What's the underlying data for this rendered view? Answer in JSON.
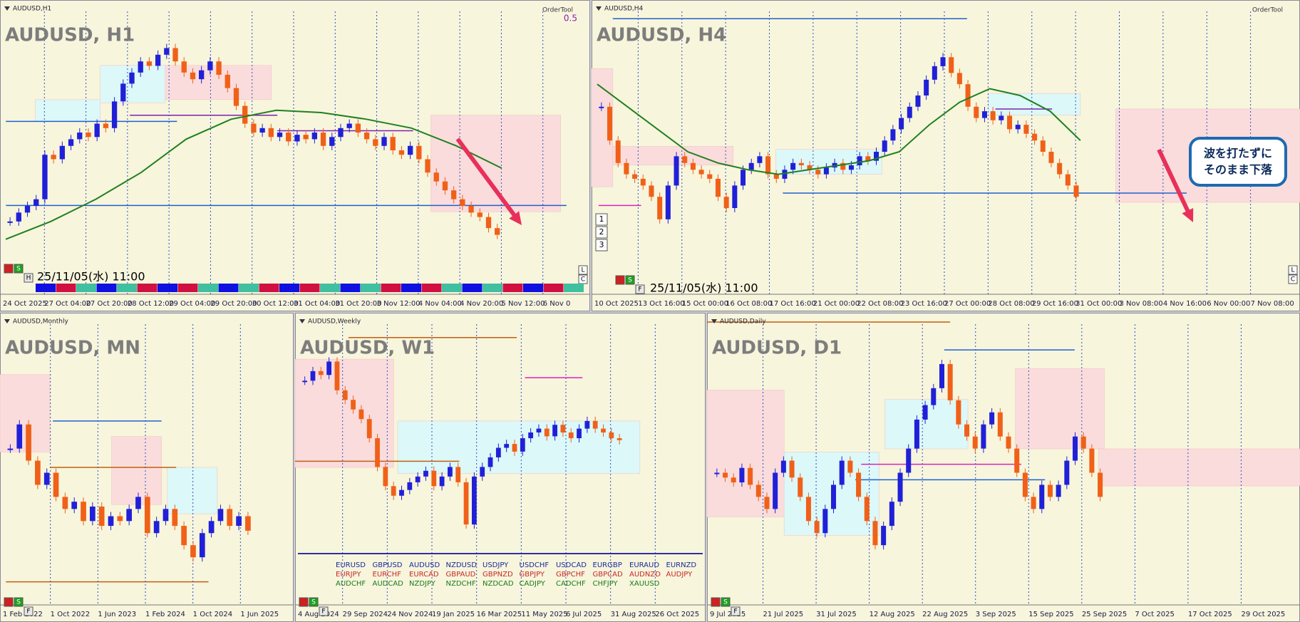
{
  "panels": [
    {
      "window": "AUDUSD,H1",
      "title": "AUDUSD, H1",
      "timestamp": "25/11/05(水) 11:00",
      "tool": "OrderTool",
      "ratio": "0.5",
      "buttons": [
        "S",
        "H"
      ],
      "side_buttons": [
        "L",
        "C"
      ],
      "xlabels": [
        "24 Oct 2025",
        "27 Oct 04:00",
        "27 Oct 20:00",
        "28 Oct 12:00",
        "29 Oct 04:00",
        "29 Oct 20:00",
        "30 Oct 12:00",
        "31 Oct 04:00",
        "31 Oct 20:00",
        "3 Nov 12:00",
        "4 Nov 04:00",
        "4 Nov 20:00",
        "5 Nov 12:00",
        "6 Nov 0"
      ],
      "ylim": [
        0,
        100
      ],
      "closes": [
        18,
        22,
        25,
        28,
        48,
        46,
        52,
        55,
        58,
        56,
        62,
        60,
        72,
        80,
        85,
        90,
        88,
        93,
        96,
        90,
        85,
        82,
        86,
        90,
        84,
        78,
        70,
        62,
        58,
        60,
        56,
        58,
        54,
        57,
        55,
        58,
        52,
        56,
        60,
        62,
        58,
        55,
        52,
        56,
        50,
        48,
        52,
        46,
        40,
        36,
        32,
        28,
        25,
        22,
        20,
        15,
        12
      ],
      "ma": [
        10,
        18,
        28,
        40,
        55,
        64,
        68,
        67,
        64,
        60,
        52,
        42
      ]
    },
    {
      "window": "AUDUSD,H4",
      "title": "AUDUSD, H4",
      "timestamp": "25/11/05(水) 11:00",
      "tool": "OrderTool",
      "buttons": [
        "S",
        "F"
      ],
      "side_buttons": [
        "L",
        "C"
      ],
      "levels": [
        "1",
        "2",
        "3"
      ],
      "xlabels": [
        "10 Oct 2025",
        "13 Oct 16:00",
        "15 Oct 00:00",
        "16 Oct 08:00",
        "17 Oct 16:00",
        "21 Oct 00:00",
        "22 Oct 08:00",
        "23 Oct 16:00",
        "27 Oct 00:00",
        "28 Oct 08:00",
        "29 Oct 16:00",
        "31 Oct 00:00",
        "3 Nov 08:00",
        "4 Nov 16:00",
        "6 Nov 00:00",
        "7 Nov 08:00"
      ],
      "ylim": [
        0,
        100
      ],
      "closes": [
        70,
        55,
        45,
        40,
        38,
        35,
        30,
        20,
        35,
        48,
        45,
        42,
        40,
        38,
        30,
        25,
        35,
        42,
        45,
        48,
        40,
        38,
        42,
        45,
        44,
        42,
        40,
        43,
        45,
        42,
        44,
        48,
        46,
        50,
        55,
        60,
        65,
        70,
        75,
        82,
        88,
        92,
        85,
        80,
        70,
        65,
        68,
        64,
        66,
        60,
        62,
        58,
        55,
        50,
        45,
        40,
        35,
        30
      ],
      "ma": [
        80,
        70,
        60,
        50,
        45,
        42,
        40,
        42,
        44,
        46,
        50,
        62,
        72,
        78,
        75,
        68,
        55
      ],
      "annotation": [
        "波を打たずに",
        "そのまま下落"
      ]
    },
    {
      "window": "AUDUSD,Monthly",
      "title": "AUDUSD, MN",
      "buttons": [
        "S",
        "F"
      ],
      "xlabels": [
        "1 Feb 2022",
        "1 Oct 2022",
        "1 Jun 2023",
        "1 Feb 2024",
        "1 Oct 2024",
        "1 Jun 2025"
      ],
      "ylim": [
        0,
        100
      ],
      "closes": [
        60,
        70,
        55,
        45,
        50,
        40,
        35,
        38,
        30,
        36,
        28,
        32,
        30,
        35,
        40,
        25,
        30,
        35,
        28,
        20,
        15,
        25,
        30,
        35,
        28,
        32,
        26
      ]
    },
    {
      "window": "AUDUSD,Weekly",
      "title": "AUDUSD, W1",
      "buttons": [
        "S",
        "F"
      ],
      "xlabels": [
        "4 Aug 2024",
        "29 Sep 2024",
        "24 Nov 2024",
        "19 Jan 2025",
        "16 Mar 2025",
        "11 May 2025",
        "6 Jul 2025",
        "31 Aug 2025",
        "26 Oct 2025"
      ],
      "ylim": [
        0,
        100
      ],
      "closes": [
        85,
        90,
        88,
        95,
        80,
        75,
        70,
        65,
        55,
        40,
        30,
        25,
        28,
        32,
        35,
        38,
        30,
        35,
        40,
        32,
        10,
        35,
        40,
        45,
        50,
        52,
        48,
        55,
        58,
        60,
        56,
        62,
        58,
        55,
        60,
        64,
        60,
        58,
        55,
        54
      ],
      "symbols": [
        [
          "EURUSD",
          "GBPUSD",
          "AUDUSD",
          "NZDUSD",
          "USDJPY",
          "USDCHF",
          "USDCAD",
          "EURGBP",
          "EURAUD",
          "EURNZD"
        ],
        [
          "EURJPY",
          "EURCHF",
          "EURCAD",
          "GBPAUD",
          "GBPNZD",
          "GBPJPY",
          "GBPCHF",
          "GBPCAD",
          "AUDNZD",
          "AUDJPY"
        ],
        [
          "AUDCHF",
          "AUDCAD",
          "NZDJPY",
          "NZDCHF",
          "NZDCAD",
          "CADJPY",
          "CADCHF",
          "CHFJPY",
          "XAUUSD"
        ]
      ]
    },
    {
      "window": "AUDUSD,Daily",
      "title": "AUDUSD, D1",
      "buttons": [
        "S",
        "F"
      ],
      "xlabels": [
        "9 Jul 2025",
        "21 Jul 2025",
        "31 Jul 2025",
        "12 Aug 2025",
        "22 Aug 2025",
        "3 Sep 2025",
        "15 Sep 2025",
        "25 Sep 2025",
        "7 Oct 2025",
        "17 Oct 2025",
        "29 Oct 2025"
      ],
      "ylim": [
        0,
        100
      ],
      "closes": [
        50,
        48,
        46,
        52,
        45,
        40,
        35,
        50,
        55,
        48,
        40,
        30,
        25,
        35,
        45,
        55,
        50,
        40,
        30,
        20,
        28,
        38,
        50,
        60,
        72,
        78,
        85,
        95,
        80,
        70,
        65,
        60,
        70,
        75,
        65,
        60,
        50,
        40,
        35,
        45,
        40,
        45,
        55,
        65,
        60,
        50,
        40
      ]
    }
  ]
}
